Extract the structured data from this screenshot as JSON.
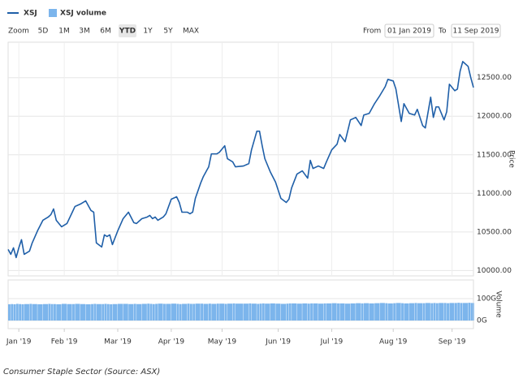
{
  "ui": {
    "zoom_label": "Zoom",
    "buttons": [
      "5D",
      "1M",
      "3M",
      "6M",
      "YTD",
      "1Y",
      "5Y",
      "MAX"
    ],
    "selected": 4,
    "from_label": "From",
    "from_date": "01 Jan 2019",
    "to_label": "To",
    "to_date": "11 Sep 2019"
  },
  "caption": "Consumer Staple Sector (Source: ASX)",
  "chart_data": {
    "type": "line",
    "y_label": "Price",
    "y2_label": "Volume",
    "grid": true,
    "legend": "top-left",
    "x": [
      0,
      1,
      2,
      3,
      4,
      5,
      6,
      8,
      9,
      11,
      13,
      15,
      16,
      17,
      18,
      20,
      22,
      24,
      25,
      27,
      29,
      31,
      32,
      33,
      35,
      36,
      37,
      38,
      39,
      41,
      43,
      45,
      47,
      48,
      50,
      52,
      53,
      54,
      55,
      56,
      58,
      59,
      61,
      63,
      64,
      65,
      67,
      68,
      69,
      70,
      72,
      73,
      75,
      76,
      78,
      79,
      81,
      82,
      84,
      85,
      88,
      90,
      91,
      93,
      94,
      95,
      96,
      98,
      100,
      102,
      104,
      105,
      106,
      108,
      110,
      112,
      113,
      114,
      116,
      118,
      119,
      121,
      123,
      124,
      126,
      128,
      130,
      132,
      133,
      135,
      137,
      139,
      141,
      142,
      144,
      145,
      147,
      148,
      150,
      152,
      153,
      155,
      156,
      158,
      159,
      160,
      161,
      163,
      164,
      165,
      167,
      168,
      169,
      170,
      172,
      173,
      174
    ],
    "xlim": [
      0,
      174
    ],
    "xticks": [
      {
        "value": 4,
        "label": "Jan '19"
      },
      {
        "value": 21,
        "label": "Feb '19"
      },
      {
        "value": 41,
        "label": "Mar '19"
      },
      {
        "value": 61,
        "label": "Apr '19"
      },
      {
        "value": 80,
        "label": "May '19"
      },
      {
        "value": 101,
        "label": "Jun '19"
      },
      {
        "value": 121,
        "label": "Jul '19"
      },
      {
        "value": 144,
        "label": "Aug '19"
      },
      {
        "value": 166,
        "label": "Sep '19"
      }
    ],
    "ylim": [
      9930,
      12960
    ],
    "yticks": [
      {
        "value": 10000,
        "label": "10000.00"
      },
      {
        "value": 10500,
        "label": "10500.00"
      },
      {
        "value": 11000,
        "label": "11000.00"
      },
      {
        "value": 11500,
        "label": "11500.00"
      },
      {
        "value": 12000,
        "label": "12000.00"
      },
      {
        "value": 12500,
        "label": "12500.00"
      }
    ],
    "y2lim": [
      -37,
      185
    ],
    "y2ticks": [
      {
        "value": 0,
        "label": "0G"
      },
      {
        "value": 100,
        "label": "100G"
      }
    ],
    "series": [
      {
        "name": "XSJ",
        "color": "#1f5fa8",
        "values": [
          10273,
          10210,
          10294,
          10168,
          10294,
          10399,
          10210,
          10252,
          10357,
          10515,
          10651,
          10693,
          10725,
          10798,
          10651,
          10567,
          10609,
          10756,
          10830,
          10861,
          10903,
          10777,
          10756,
          10357,
          10305,
          10462,
          10441,
          10462,
          10336,
          10515,
          10672,
          10756,
          10620,
          10609,
          10672,
          10693,
          10714,
          10672,
          10693,
          10651,
          10693,
          10735,
          10924,
          10956,
          10882,
          10756,
          10756,
          10735,
          10756,
          10935,
          11134,
          11218,
          11344,
          11512,
          11512,
          11533,
          11617,
          11449,
          11407,
          11344,
          11355,
          11386,
          11564,
          11806,
          11806,
          11617,
          11449,
          11281,
          11145,
          10935,
          10882,
          10924,
          11071,
          11250,
          11292,
          11197,
          11428,
          11323,
          11355,
          11323,
          11407,
          11564,
          11638,
          11764,
          11669,
          11953,
          11985,
          11879,
          12016,
          12037,
          12163,
          12268,
          12384,
          12478,
          12457,
          12352,
          11932,
          12163,
          12037,
          12016,
          12090,
          11879,
          11848,
          12247,
          11985,
          12121,
          12121,
          11953,
          12058,
          12415,
          12331,
          12352,
          12583,
          12709,
          12646,
          12500,
          12373
        ]
      },
      {
        "name": "XSJ volume",
        "color": "#7cb5ec",
        "axis": "y2",
        "values": [
          74,
          75,
          74,
          76,
          75,
          74,
          75,
          76,
          75,
          74,
          75,
          76,
          75,
          75,
          74,
          76,
          75,
          75,
          76,
          75,
          74,
          75,
          76,
          75,
          75,
          76,
          75,
          74,
          75,
          76,
          76,
          75,
          76,
          75,
          76,
          77,
          76,
          75,
          76,
          77,
          76,
          76,
          77,
          76,
          75,
          76,
          77,
          76,
          76,
          77,
          77,
          76,
          77,
          76,
          77,
          77,
          76,
          77,
          78,
          77,
          77,
          78,
          77,
          76,
          77,
          78,
          77,
          78,
          77,
          76,
          77,
          78,
          78,
          77,
          78,
          77,
          78,
          78,
          77,
          78,
          78,
          79,
          78,
          78,
          77,
          78,
          79,
          78,
          79,
          78,
          79,
          80,
          79,
          78,
          79,
          80,
          79,
          78,
          79,
          80,
          79,
          79,
          80,
          79,
          80,
          79,
          80,
          80,
          79,
          80,
          80,
          81,
          80,
          80,
          81,
          80,
          80
        ]
      }
    ]
  }
}
